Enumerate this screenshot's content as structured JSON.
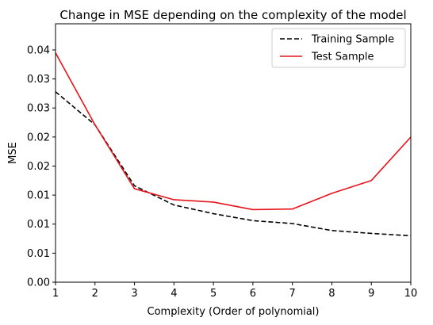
{
  "chart_data": {
    "type": "line",
    "title": "Change in MSE depending on the complexity of the model",
    "xlabel": "Complexity (Order of polynomial)",
    "ylabel": "MSE",
    "x": [
      1,
      2,
      3,
      4,
      5,
      6,
      7,
      8,
      9,
      10
    ],
    "xlim": [
      1,
      10
    ],
    "ylim": [
      0,
      0.0445
    ],
    "x_ticks": [
      1,
      2,
      3,
      4,
      5,
      6,
      7,
      8,
      9,
      10
    ],
    "y_ticks": [
      0.0,
      0.005,
      0.01,
      0.015,
      0.02,
      0.025,
      0.03,
      0.035,
      0.04
    ],
    "y_tick_labels": [
      "0.00",
      "0.01",
      "0.01",
      "0.01",
      "0.02",
      "0.02",
      "0.03",
      "0.03",
      "0.04"
    ],
    "grid": false,
    "legend_position": "top-right",
    "series": [
      {
        "name": "Training Sample",
        "style": "dashed",
        "color": "#000000",
        "values": [
          0.0328,
          0.0271,
          0.0166,
          0.0133,
          0.0118,
          0.0106,
          0.0101,
          0.0089,
          0.0084,
          0.008
        ]
      },
      {
        "name": "Test Sample",
        "style": "solid",
        "color": "#e8141c",
        "values": [
          0.0395,
          0.0271,
          0.0161,
          0.0142,
          0.0138,
          0.0125,
          0.0126,
          0.0153,
          0.0175,
          0.025
        ]
      }
    ]
  }
}
